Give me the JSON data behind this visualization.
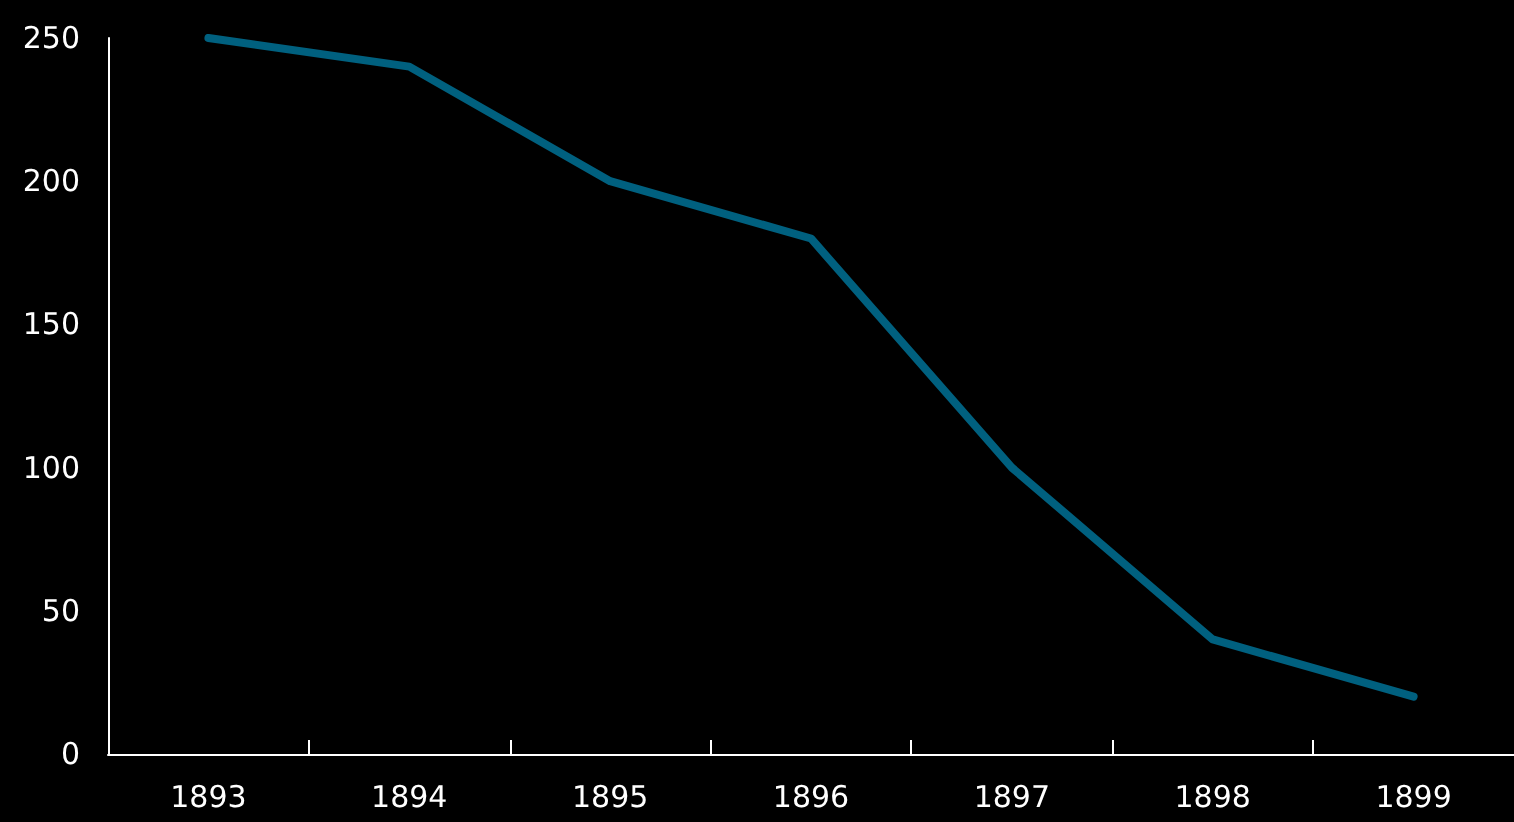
{
  "chart_data": {
    "type": "line",
    "categories": [
      "1893",
      "1894",
      "1895",
      "1896",
      "1897",
      "1898",
      "1899"
    ],
    "series": [
      {
        "color": "#00607f",
        "values": [
          250,
          240,
          200,
          180,
          100,
          40,
          20
        ]
      }
    ],
    "ylim": [
      0,
      250
    ],
    "yticks": [
      0,
      50,
      100,
      150,
      200,
      250
    ],
    "grid": false,
    "marker": "none",
    "line_style": "solid"
  }
}
